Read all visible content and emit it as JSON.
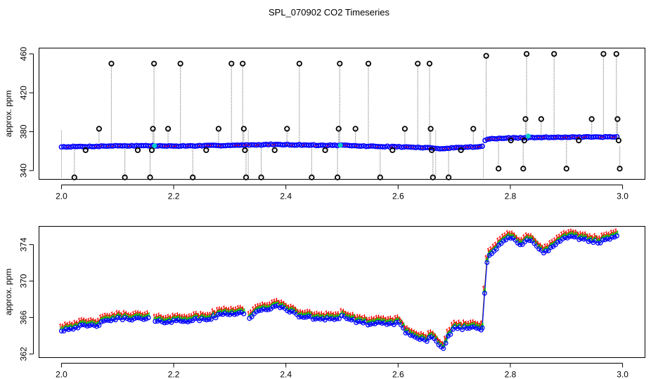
{
  "title": "SPL_070902  CO2 Timeseries",
  "colors": {
    "axis": "#000000",
    "blue": "#0000ff",
    "red": "#ff0000",
    "green": "#00cc00",
    "cyan": "#00cccc",
    "spike": "#9a9a9a",
    "outlier": "#000000"
  },
  "chart_data": [
    {
      "type": "scatter",
      "name": "top-panel",
      "ylabel": "approx. ppm",
      "xlim": [
        1.96,
        3.04
      ],
      "ylim": [
        331,
        466
      ],
      "x_ticks": [
        2.0,
        2.2,
        2.4,
        2.6,
        2.8,
        3.0
      ],
      "x_tick_labels": [
        "2.0",
        "2.2",
        "2.4",
        "2.6",
        "2.8",
        "3.0"
      ],
      "y_ticks": [
        340,
        380,
        420,
        460
      ],
      "y_tick_labels": [
        "340",
        "380",
        "420",
        "460"
      ],
      "baseline_segments": [
        {
          "x": [
            2.0,
            2.05,
            2.1,
            2.15,
            2.2,
            2.25,
            2.3,
            2.33
          ],
          "y": [
            364.5,
            364.8,
            365.5,
            365.6,
            365.2,
            365.5,
            366.0,
            366.2
          ]
        },
        {
          "x": [
            2.335,
            2.38,
            2.42,
            2.46,
            2.5
          ],
          "y": [
            366.2,
            367.0,
            366.5,
            366.0,
            366.0
          ]
        },
        {
          "x": [
            2.505,
            2.55,
            2.6,
            2.65,
            2.665
          ],
          "y": [
            365.8,
            365.0,
            364.5,
            363.5,
            363.0
          ]
        },
        {
          "x": [
            2.67,
            2.7,
            2.74,
            2.75
          ],
          "y": [
            362.5,
            363.5,
            364.5,
            365.0
          ]
        },
        {
          "x": [
            2.755,
            2.76,
            2.8,
            2.85,
            2.9,
            2.95,
            2.99
          ],
          "y": [
            371.0,
            372.5,
            373.5,
            374.0,
            374.5,
            374.5,
            374.6
          ]
        }
      ],
      "outliers": [
        {
          "x": 2.023,
          "y": 333
        },
        {
          "x": 2.043,
          "y": 361
        },
        {
          "x": 2.067,
          "y": 383
        },
        {
          "x": 2.089,
          "y": 450
        },
        {
          "x": 2.113,
          "y": 333
        },
        {
          "x": 2.136,
          "y": 361
        },
        {
          "x": 2.158,
          "y": 333
        },
        {
          "x": 2.161,
          "y": 361
        },
        {
          "x": 2.163,
          "y": 383
        },
        {
          "x": 2.165,
          "y": 450
        },
        {
          "x": 2.19,
          "y": 383
        },
        {
          "x": 2.212,
          "y": 450
        },
        {
          "x": 2.234,
          "y": 333
        },
        {
          "x": 2.258,
          "y": 361
        },
        {
          "x": 2.28,
          "y": 383
        },
        {
          "x": 2.303,
          "y": 450
        },
        {
          "x": 2.323,
          "y": 450
        },
        {
          "x": 2.325,
          "y": 383
        },
        {
          "x": 2.327,
          "y": 361
        },
        {
          "x": 2.329,
          "y": 333
        },
        {
          "x": 2.356,
          "y": 333
        },
        {
          "x": 2.38,
          "y": 361
        },
        {
          "x": 2.402,
          "y": 383
        },
        {
          "x": 2.424,
          "y": 450
        },
        {
          "x": 2.446,
          "y": 333
        },
        {
          "x": 2.47,
          "y": 361
        },
        {
          "x": 2.492,
          "y": 333
        },
        {
          "x": 2.494,
          "y": 383
        },
        {
          "x": 2.496,
          "y": 450
        },
        {
          "x": 2.524,
          "y": 383
        },
        {
          "x": 2.547,
          "y": 450
        },
        {
          "x": 2.568,
          "y": 333
        },
        {
          "x": 2.59,
          "y": 361
        },
        {
          "x": 2.612,
          "y": 383
        },
        {
          "x": 2.635,
          "y": 450
        },
        {
          "x": 2.656,
          "y": 450
        },
        {
          "x": 2.658,
          "y": 383
        },
        {
          "x": 2.66,
          "y": 361
        },
        {
          "x": 2.662,
          "y": 333
        },
        {
          "x": 2.69,
          "y": 333
        },
        {
          "x": 2.712,
          "y": 361
        },
        {
          "x": 2.734,
          "y": 383
        },
        {
          "x": 2.757,
          "y": 458
        },
        {
          "x": 2.779,
          "y": 342
        },
        {
          "x": 2.801,
          "y": 371
        },
        {
          "x": 2.823,
          "y": 342
        },
        {
          "x": 2.825,
          "y": 371
        },
        {
          "x": 2.827,
          "y": 393
        },
        {
          "x": 2.829,
          "y": 460
        },
        {
          "x": 2.855,
          "y": 393
        },
        {
          "x": 2.878,
          "y": 460
        },
        {
          "x": 2.9,
          "y": 342
        },
        {
          "x": 2.922,
          "y": 371
        },
        {
          "x": 2.945,
          "y": 393
        },
        {
          "x": 2.966,
          "y": 460
        },
        {
          "x": 2.989,
          "y": 460
        },
        {
          "x": 2.991,
          "y": 393
        },
        {
          "x": 2.993,
          "y": 371
        },
        {
          "x": 2.995,
          "y": 342
        }
      ],
      "highlighted_points": [
        {
          "x": 2.166,
          "y": 365.5
        },
        {
          "x": 2.497,
          "y": 366.0
        },
        {
          "x": 2.832,
          "y": 375.5
        }
      ]
    },
    {
      "type": "line",
      "name": "bottom-panel",
      "ylabel": "approx. ppm",
      "xlim": [
        1.96,
        3.04
      ],
      "ylim": [
        361.6,
        376.0
      ],
      "x_ticks": [
        2.0,
        2.2,
        2.4,
        2.6,
        2.8,
        3.0
      ],
      "x_tick_labels": [
        "2.0",
        "2.2",
        "2.4",
        "2.6",
        "2.8",
        "3.0"
      ],
      "y_ticks": [
        362,
        366,
        370,
        374
      ],
      "y_tick_labels": [
        "362",
        "366",
        "370",
        "374"
      ],
      "series_markers": [
        {
          "name": "series 1",
          "marker": "1",
          "color": "#ff0000"
        },
        {
          "name": "series 4",
          "marker": "4",
          "color": "#00cc00"
        },
        {
          "name": "series o",
          "marker": "o",
          "color": "#0000ff"
        }
      ],
      "segments": [
        {
          "x": [
            2.0,
            2.03,
            2.06,
            2.09,
            2.12,
            2.15,
            2.155
          ],
          "y": [
            364.6,
            365.0,
            365.1,
            365.8,
            365.9,
            365.8,
            365.9
          ]
        },
        {
          "x": [
            2.167,
            2.2,
            2.23,
            2.26,
            2.29,
            2.32,
            2.325
          ],
          "y": [
            365.5,
            365.6,
            365.7,
            365.8,
            366.4,
            366.5,
            366.4
          ]
        },
        {
          "x": [
            2.335,
            2.35,
            2.38,
            2.4,
            2.42,
            2.45,
            2.48,
            2.495
          ],
          "y": [
            366.0,
            366.6,
            367.2,
            367.0,
            366.2,
            365.9,
            365.9,
            365.8
          ]
        },
        {
          "x": [
            2.5,
            2.53,
            2.56,
            2.59,
            2.6,
            2.61,
            2.63,
            2.65,
            2.66,
            2.67,
            2.68,
            2.69,
            2.7,
            2.72,
            2.74,
            2.748
          ],
          "y": [
            366.2,
            365.4,
            365.3,
            365.3,
            365.6,
            364.6,
            363.8,
            363.5,
            363.8,
            363.2,
            362.3,
            364.0,
            364.9,
            364.8,
            365.0,
            364.6
          ]
        },
        {
          "x": [
            2.75,
            2.755,
            2.758,
            2.76,
            2.77,
            2.78,
            2.79,
            2.8,
            2.81,
            2.82,
            2.83,
            2.84,
            2.85,
            2.86,
            2.87,
            2.88,
            2.9,
            2.92,
            2.94,
            2.96,
            2.98,
            2.99
          ],
          "y": [
            365.0,
            369.5,
            372.0,
            372.8,
            373.2,
            373.8,
            374.5,
            374.8,
            374.3,
            373.8,
            374.6,
            374.5,
            373.6,
            373.0,
            373.5,
            374.0,
            374.8,
            374.7,
            374.5,
            374.2,
            374.8,
            374.8
          ]
        }
      ]
    }
  ]
}
